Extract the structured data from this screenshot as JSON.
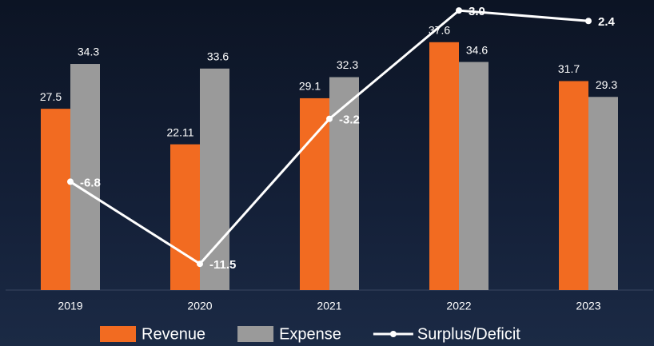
{
  "chart_data": {
    "type": "bar",
    "categories": [
      "2019",
      "2020",
      "2021",
      "2022",
      "2023"
    ],
    "series": [
      {
        "name": "Revenue",
        "color": "#f26b21",
        "values": [
          27.5,
          22.11,
          29.1,
          37.6,
          31.7
        ]
      },
      {
        "name": "Expense",
        "color": "#9a9a9a",
        "values": [
          34.3,
          33.6,
          32.3,
          34.6,
          29.3
        ]
      },
      {
        "name": "Surplus/Deficit",
        "type": "line",
        "axis": "y2",
        "color": "#ffffff",
        "values": [
          -6.8,
          -11.5,
          -3.2,
          3.0,
          2.4
        ],
        "value_labels": [
          "-6.8",
          "-11.5",
          "-3.2",
          "3.0",
          "2.4"
        ]
      }
    ],
    "ylim": [
      0,
      44
    ],
    "y2lim": [
      -13,
      3.6
    ],
    "legend": "bottom"
  }
}
